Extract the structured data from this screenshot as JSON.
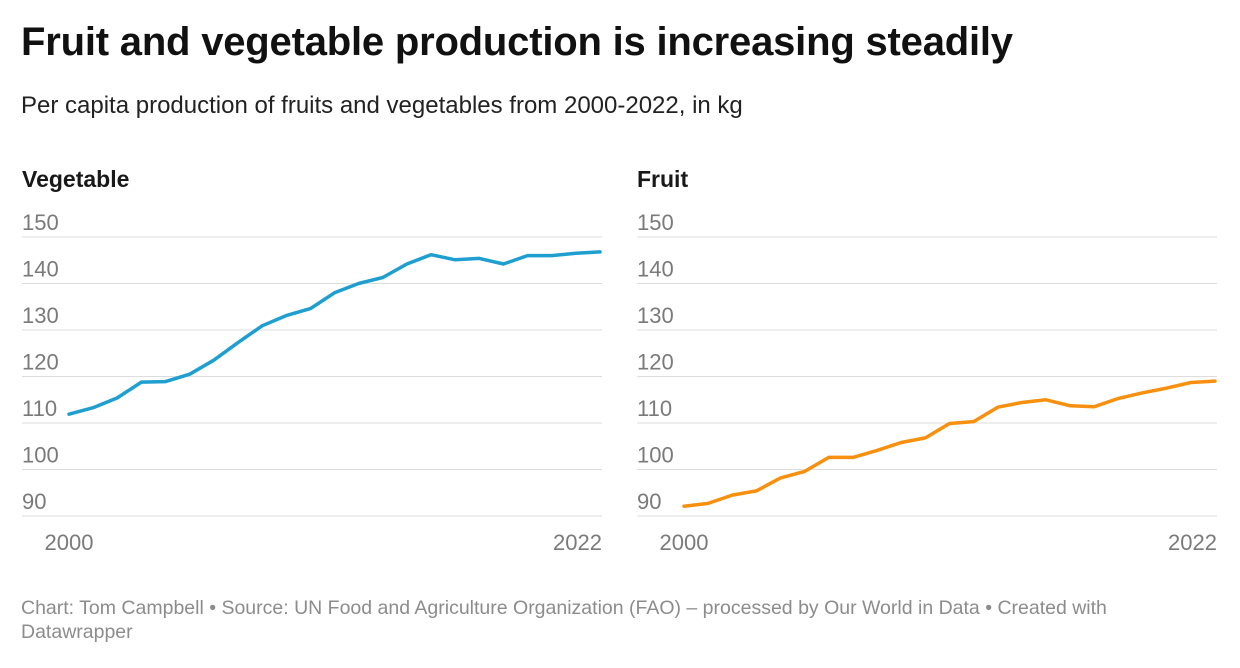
{
  "title": "Fruit and vegetable production is increasing steadily",
  "subtitle": "Per capita production of fruits and vegetables from 2000-2022, in kg",
  "footer": {
    "text": "Chart: Tom Campbell • Source: UN Food and Agriculture Organization (FAO) – processed by Our World in Data • Created with Datawrapper"
  },
  "chart_data": [
    {
      "type": "line",
      "title": "Vegetable",
      "color": "#1f9fd0",
      "x": [
        2000,
        2001,
        2002,
        2003,
        2004,
        2005,
        2006,
        2007,
        2008,
        2009,
        2010,
        2011,
        2012,
        2013,
        2014,
        2015,
        2016,
        2017,
        2018,
        2019,
        2020,
        2021,
        2022
      ],
      "values": [
        111.9,
        113.3,
        115.4,
        118.8,
        118.9,
        120.5,
        123.5,
        127.3,
        130.9,
        133.1,
        134.6,
        138.0,
        140.0,
        141.3,
        144.2,
        146.2,
        145.1,
        145.4,
        144.2,
        146.0,
        146.0,
        146.5,
        146.8
      ],
      "xtick_labels": [
        "2000",
        "2022"
      ],
      "yticks": [
        90,
        100,
        110,
        120,
        130,
        140,
        150
      ],
      "ylim": [
        85,
        152
      ],
      "grid": true
    },
    {
      "type": "line",
      "title": "Fruit",
      "color": "#f7900f",
      "x": [
        2000,
        2001,
        2002,
        2003,
        2004,
        2005,
        2006,
        2007,
        2008,
        2009,
        2010,
        2011,
        2012,
        2013,
        2014,
        2015,
        2016,
        2017,
        2018,
        2019,
        2020,
        2021,
        2022
      ],
      "values": [
        92.1,
        92.7,
        94.5,
        95.4,
        98.2,
        99.6,
        102.6,
        102.6,
        104.1,
        105.8,
        106.8,
        109.9,
        110.3,
        113.4,
        114.4,
        115.0,
        113.7,
        113.5,
        115.3,
        116.5,
        117.5,
        118.7,
        119.0
      ],
      "xtick_labels": [
        "2000",
        "2022"
      ],
      "yticks": [
        90,
        100,
        110,
        120,
        130,
        140,
        150
      ],
      "ylim": [
        85,
        152
      ],
      "grid": true
    }
  ]
}
